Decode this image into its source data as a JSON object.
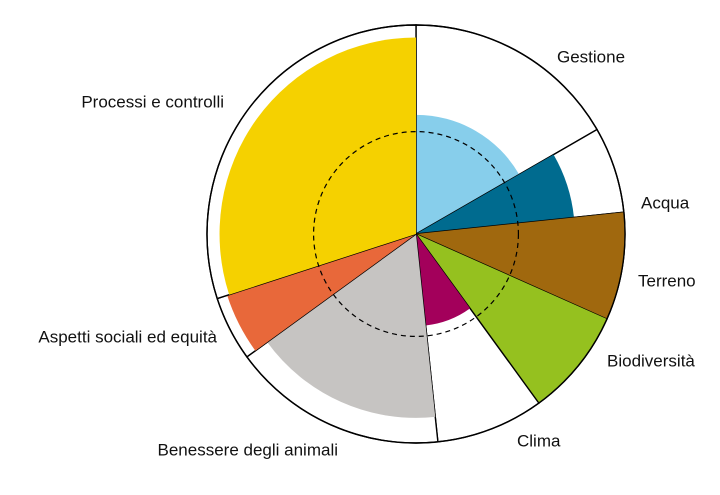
{
  "chart_data": {
    "type": "polar-area",
    "title": "",
    "max_value": 100,
    "reference_ring_value": 49,
    "outer_ring": true,
    "sectors": [
      {
        "label": "Gestione",
        "value": 57,
        "fraction": 0.1667,
        "color": "#87CEEB"
      },
      {
        "label": "Acqua",
        "value": 76,
        "fraction": 0.0667,
        "color": "#006B8F"
      },
      {
        "label": "Terreno",
        "value": 100,
        "fraction": 0.0833,
        "color": "#A0680E"
      },
      {
        "label": "Biodiversità",
        "value": 100,
        "fraction": 0.0833,
        "color": "#95C11F"
      },
      {
        "label": "Clima",
        "value": 44,
        "fraction": 0.0833,
        "color": "#A3005B"
      },
      {
        "label": "Benessere degli animali",
        "value": 88,
        "fraction": 0.1667,
        "color": "#C6C4C2"
      },
      {
        "label": "Aspetti sociali ed equità",
        "value": 95,
        "fraction": 0.05,
        "color": "#E8683A"
      },
      {
        "label": "Processi e controlli",
        "value": 94,
        "fraction": 0.3,
        "color": "#F5D100"
      }
    ]
  }
}
